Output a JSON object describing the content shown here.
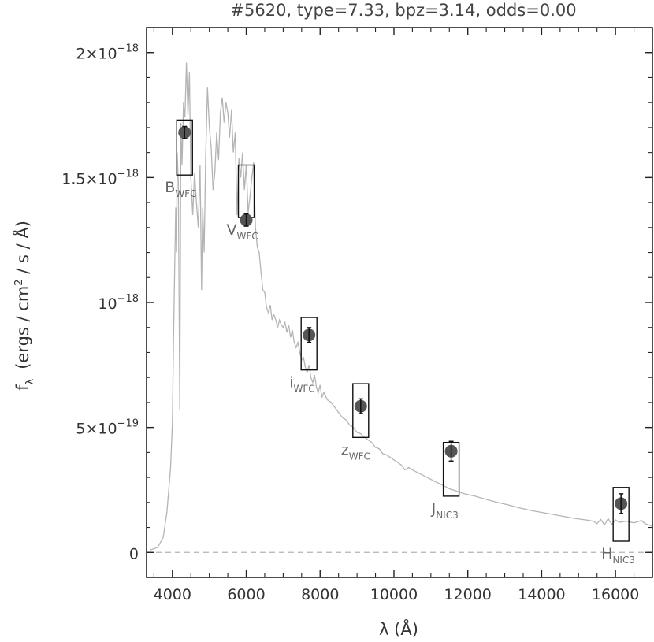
{
  "chart_data": {
    "type": "scatter",
    "title": "#5620, type=7.33, bpz=3.14, odds=0.00",
    "xlabel": "λ (Å)",
    "ylabel": "f",
    "ylabel_sub": "λ",
    "ylabel_rest": "(ergs / cm",
    "ylabel_sup": "2",
    "ylabel_tail": " / s / Å)",
    "xlim": [
      3300,
      17000
    ],
    "ylim": [
      -1e-19,
      2.1e-18
    ],
    "xticks": [
      {
        "value": 4000,
        "label": "4000"
      },
      {
        "value": 6000,
        "label": "6000"
      },
      {
        "value": 8000,
        "label": "8000"
      },
      {
        "value": 10000,
        "label": "10000"
      },
      {
        "value": 12000,
        "label": "12000"
      },
      {
        "value": 14000,
        "label": "14000"
      },
      {
        "value": 16000,
        "label": "16000"
      }
    ],
    "yticks": [
      {
        "value": 0,
        "base": "0",
        "exp": ""
      },
      {
        "value": 5e-19,
        "base": "5×10",
        "exp": "−19"
      },
      {
        "value": 1e-18,
        "base": "10",
        "exp": "−18"
      },
      {
        "value": 1.5e-18,
        "base": "1.5×10",
        "exp": "−18"
      },
      {
        "value": 2e-18,
        "base": "2×10",
        "exp": "−18"
      }
    ],
    "zero_line": true,
    "observed": [
      {
        "filter": "B",
        "sub": "WFC",
        "x": 4330,
        "y": 1.68e-18,
        "err": 1.5e-20,
        "model_low": 1.51e-18,
        "model_high": 1.73e-18
      },
      {
        "filter": "V",
        "sub": "WFC",
        "x": 6000,
        "y": 1.33e-18,
        "err": 1.5e-20,
        "model_low": 1.34e-18,
        "model_high": 1.55e-18
      },
      {
        "filter": "i",
        "sub": "WFC",
        "x": 7700,
        "y": 8.7e-19,
        "err": 2e-20,
        "model_low": 7.3e-19,
        "model_high": 9.4e-19
      },
      {
        "filter": "z",
        "sub": "WFC",
        "x": 9100,
        "y": 5.85e-19,
        "err": 2e-20,
        "model_low": 4.6e-19,
        "model_high": 6.75e-19
      },
      {
        "filter": "J",
        "sub": "NIC3",
        "x": 11550,
        "y": 4.05e-19,
        "err": 3e-20,
        "model_low": 2.25e-19,
        "model_high": 4.4e-19
      },
      {
        "filter": "H",
        "sub": "NIC3",
        "x": 16150,
        "y": 1.95e-19,
        "err": 3e-20,
        "model_low": 4.5e-20,
        "model_high": 2.6e-19
      }
    ],
    "sed": [
      [
        3400,
        1e-20
      ],
      [
        3600,
        2e-20
      ],
      [
        3750,
        6e-20
      ],
      [
        3850,
        1.6e-19
      ],
      [
        3950,
        3.4e-19
      ],
      [
        4000,
        5.2e-19
      ],
      [
        4030,
        8.5e-19
      ],
      [
        4060,
        1.12e-18
      ],
      [
        4090,
        1.38e-18
      ],
      [
        4110,
        1.2e-18
      ],
      [
        4130,
        1.6e-18
      ],
      [
        4160,
        1.48e-18
      ],
      [
        4200,
        5.7e-19
      ],
      [
        4230,
        1.72e-18
      ],
      [
        4260,
        1.55e-18
      ],
      [
        4300,
        1.8e-18
      ],
      [
        4340,
        1.74e-18
      ],
      [
        4380,
        1.96e-18
      ],
      [
        4420,
        1.75e-18
      ],
      [
        4460,
        1.92e-18
      ],
      [
        4500,
        1.5e-18
      ],
      [
        4550,
        1.35e-18
      ],
      [
        4600,
        1.52e-18
      ],
      [
        4650,
        1.4e-18
      ],
      [
        4700,
        1.3e-18
      ],
      [
        4750,
        1.55e-18
      ],
      [
        4790,
        1.05e-18
      ],
      [
        4820,
        1.38e-18
      ],
      [
        4860,
        1.2e-18
      ],
      [
        4900,
        1.58e-18
      ],
      [
        4950,
        1.86e-18
      ],
      [
        5000,
        1.7e-18
      ],
      [
        5050,
        1.62e-18
      ],
      [
        5100,
        1.45e-18
      ],
      [
        5150,
        1.52e-18
      ],
      [
        5200,
        1.68e-18
      ],
      [
        5250,
        1.57e-18
      ],
      [
        5300,
        1.76e-18
      ],
      [
        5350,
        1.82e-18
      ],
      [
        5400,
        1.72e-18
      ],
      [
        5450,
        1.8e-18
      ],
      [
        5500,
        1.76e-18
      ],
      [
        5550,
        1.66e-18
      ],
      [
        5600,
        1.77e-18
      ],
      [
        5650,
        1.6e-18
      ],
      [
        5700,
        1.68e-18
      ],
      [
        5750,
        1.35e-18
      ],
      [
        5800,
        1.58e-18
      ],
      [
        5850,
        1.5e-18
      ],
      [
        5900,
        1.6e-18
      ],
      [
        5950,
        1.45e-18
      ],
      [
        6000,
        1.55e-18
      ],
      [
        6050,
        1.36e-18
      ],
      [
        6100,
        1.42e-18
      ],
      [
        6150,
        1.5e-18
      ],
      [
        6200,
        1.56e-18
      ],
      [
        6250,
        1.3e-18
      ],
      [
        6300,
        1.22e-18
      ],
      [
        6350,
        1.2e-18
      ],
      [
        6400,
        1.12e-18
      ],
      [
        6450,
        1.05e-18
      ],
      [
        6500,
        1.04e-18
      ],
      [
        6550,
        9.8e-19
      ],
      [
        6600,
        9.6e-19
      ],
      [
        6650,
        9.9e-19
      ],
      [
        6700,
        9.3e-19
      ],
      [
        6750,
        9.5e-19
      ],
      [
        6800,
        9.3e-19
      ],
      [
        6850,
        9e-19
      ],
      [
        6900,
        9.3e-19
      ],
      [
        6950,
        9.1e-19
      ],
      [
        7000,
        9e-19
      ],
      [
        7050,
        9.2e-19
      ],
      [
        7100,
        8.8e-19
      ],
      [
        7150,
        9.1e-19
      ],
      [
        7200,
        8.6e-19
      ],
      [
        7250,
        8.9e-19
      ],
      [
        7300,
        8.4e-19
      ],
      [
        7350,
        8.2e-19
      ],
      [
        7400,
        8.4e-19
      ],
      [
        7450,
        8e-19
      ],
      [
        7500,
        7.7e-19
      ],
      [
        7550,
        7.8e-19
      ],
      [
        7600,
        7.4e-19
      ],
      [
        7650,
        7.2e-19
      ],
      [
        7700,
        7.5e-19
      ],
      [
        7750,
        7e-19
      ],
      [
        7800,
        6.8e-19
      ],
      [
        7850,
        7.1e-19
      ],
      [
        7900,
        6.6e-19
      ],
      [
        7950,
        6.4e-19
      ],
      [
        8000,
        6.7e-19
      ],
      [
        8050,
        6.2e-19
      ],
      [
        8100,
        6.4e-19
      ],
      [
        8200,
        6.1e-19
      ],
      [
        8300,
        6e-19
      ],
      [
        8400,
        5.8e-19
      ],
      [
        8500,
        5.6e-19
      ],
      [
        8600,
        5.4e-19
      ],
      [
        8700,
        5.3e-19
      ],
      [
        8800,
        5.1e-19
      ],
      [
        8900,
        5e-19
      ],
      [
        9000,
        4.8e-19
      ],
      [
        9100,
        4.75e-19
      ],
      [
        9200,
        4.6e-19
      ],
      [
        9300,
        4.5e-19
      ],
      [
        9400,
        4.4e-19
      ],
      [
        9500,
        4.2e-19
      ],
      [
        9600,
        4.15e-19
      ],
      [
        9700,
        3.95e-19
      ],
      [
        9800,
        3.9e-19
      ],
      [
        9900,
        3.8e-19
      ],
      [
        10000,
        3.7e-19
      ],
      [
        10100,
        3.6e-19
      ],
      [
        10200,
        3.5e-19
      ],
      [
        10300,
        3.3e-19
      ],
      [
        10400,
        3.4e-19
      ],
      [
        10500,
        3.3e-19
      ],
      [
        10700,
        3.15e-19
      ],
      [
        10900,
        3e-19
      ],
      [
        11100,
        2.85e-19
      ],
      [
        11300,
        2.7e-19
      ],
      [
        11500,
        2.55e-19
      ],
      [
        11700,
        2.45e-19
      ],
      [
        11900,
        2.35e-19
      ],
      [
        12200,
        2.25e-19
      ],
      [
        12500,
        2.12e-19
      ],
      [
        12800,
        2e-19
      ],
      [
        13100,
        1.9e-19
      ],
      [
        13400,
        1.78e-19
      ],
      [
        13700,
        1.68e-19
      ],
      [
        14000,
        1.6e-19
      ],
      [
        14300,
        1.52e-19
      ],
      [
        14600,
        1.44e-19
      ],
      [
        14900,
        1.36e-19
      ],
      [
        15200,
        1.3e-19
      ],
      [
        15400,
        1.25e-19
      ],
      [
        15500,
        1.15e-19
      ],
      [
        15600,
        1.32e-19
      ],
      [
        15700,
        1.1e-19
      ],
      [
        15800,
        1.35e-19
      ],
      [
        15900,
        1.12e-19
      ],
      [
        16000,
        1.3e-19
      ],
      [
        16100,
        1.2e-19
      ],
      [
        16300,
        1.25e-19
      ],
      [
        16500,
        1.18e-19
      ],
      [
        16700,
        1.28e-19
      ],
      [
        16800,
        1.15e-19
      ],
      [
        17000,
        1.05e-19
      ]
    ]
  }
}
